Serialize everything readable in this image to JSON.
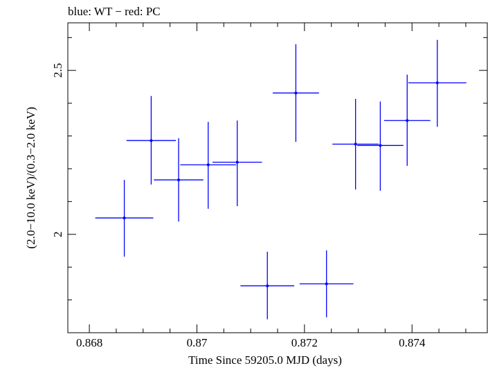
{
  "chart_data": {
    "type": "scatter",
    "title": "blue: WT − red: PC",
    "xlabel": "Time Since 59205.0 MJD (days)",
    "ylabel": "(2.0−10.0 keV)/(0.3−2.0 keV)",
    "xlim": [
      0.8676,
      0.8754
    ],
    "ylim": [
      1.7,
      2.645
    ],
    "x_ticks": [
      {
        "value": 0.868,
        "label": "0.868"
      },
      {
        "value": 0.87,
        "label": "0.87"
      },
      {
        "value": 0.872,
        "label": "0.872"
      },
      {
        "value": 0.874,
        "label": "0.874"
      }
    ],
    "x_minor_step": 0.0005,
    "y_ticks": [
      {
        "value": 2.0,
        "label": "2"
      },
      {
        "value": 2.5,
        "label": "2.5"
      }
    ],
    "y_minor_step": 0.1,
    "grid": false,
    "series": [
      {
        "color": "#0000ff",
        "points": [
          {
            "x": 0.86865,
            "xerr": 0.00054,
            "y": 2.05,
            "yerr_lo": 0.118,
            "yerr_hi": 0.116
          },
          {
            "x": 0.86915,
            "xerr": 0.00046,
            "y": 2.286,
            "yerr_lo": 0.134,
            "yerr_hi": 0.136
          },
          {
            "x": 0.86966,
            "xerr": 0.00046,
            "y": 2.166,
            "yerr_lo": 0.127,
            "yerr_hi": 0.127
          },
          {
            "x": 0.87021,
            "xerr": 0.00052,
            "y": 2.212,
            "yerr_lo": 0.134,
            "yerr_hi": 0.131
          },
          {
            "x": 0.87075,
            "xerr": 0.00046,
            "y": 2.22,
            "yerr_lo": 0.134,
            "yerr_hi": 0.127
          },
          {
            "x": 0.87131,
            "xerr": 0.0005,
            "y": 1.843,
            "yerr_lo": 0.102,
            "yerr_hi": 0.104
          },
          {
            "x": 0.87184,
            "xerr": 0.00043,
            "y": 2.431,
            "yerr_lo": 0.149,
            "yerr_hi": 0.149
          },
          {
            "x": 0.87241,
            "xerr": 0.0005,
            "y": 1.849,
            "yerr_lo": 0.102,
            "yerr_hi": 0.102
          },
          {
            "x": 0.87295,
            "xerr": 0.00043,
            "y": 2.275,
            "yerr_lo": 0.138,
            "yerr_hi": 0.138
          },
          {
            "x": 0.87341,
            "xerr": 0.00043,
            "y": 2.271,
            "yerr_lo": 0.138,
            "yerr_hi": 0.134
          },
          {
            "x": 0.87391,
            "xerr": 0.00043,
            "y": 2.347,
            "yerr_lo": 0.138,
            "yerr_hi": 0.14
          },
          {
            "x": 0.87447,
            "xerr": 0.00054,
            "y": 2.462,
            "yerr_lo": 0.134,
            "yerr_hi": 0.131
          }
        ]
      }
    ]
  }
}
